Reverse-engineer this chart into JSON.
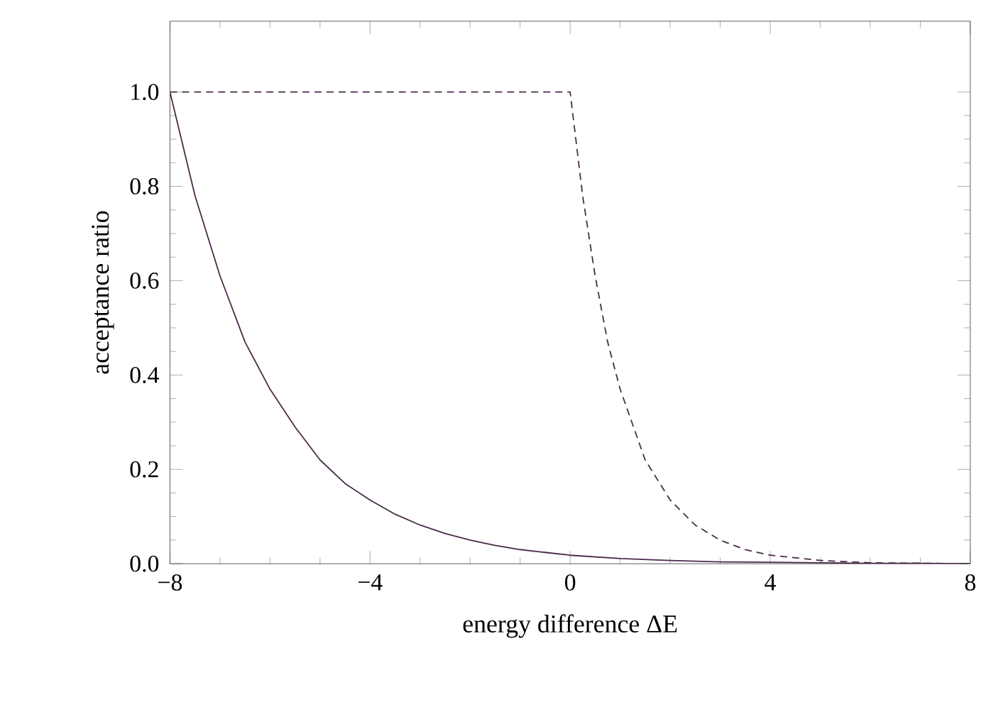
{
  "chart_data": {
    "type": "line",
    "xlabel": "energy difference ΔE",
    "ylabel": "acceptance ratio",
    "xlim": [
      -8,
      8
    ],
    "ylim": [
      0,
      1.15
    ],
    "xticks": [
      {
        "value": -8,
        "label": "−8"
      },
      {
        "value": -4,
        "label": "−4"
      },
      0,
      4,
      8
    ],
    "yticks": [
      {
        "value": 0,
        "label": "0.0"
      },
      {
        "value": 0.2,
        "label": "0.2"
      },
      {
        "value": 0.4,
        "label": "0.4"
      },
      {
        "value": 0.6,
        "label": "0.6"
      },
      {
        "value": 0.8,
        "label": "0.8"
      },
      {
        "value": 1,
        "label": "1.0"
      }
    ],
    "series": [
      {
        "color": "#4a2a4a",
        "line_style": "solid",
        "x": [
          -8,
          -7.5,
          -7,
          -6.5,
          -6,
          -5.5,
          -5,
          -4.5,
          -4,
          -3.5,
          -3,
          -2.5,
          -2,
          -1.5,
          -1,
          -0.5,
          0,
          1,
          2,
          3,
          4,
          5,
          6,
          7,
          8
        ],
        "values": [
          1.0,
          0.78,
          0.61,
          0.47,
          0.37,
          0.29,
          0.22,
          0.17,
          0.135,
          0.105,
          0.082,
          0.064,
          0.05,
          0.039,
          0.03,
          0.024,
          0.018,
          0.011,
          0.007,
          0.004,
          0.003,
          0.002,
          0.001,
          0.001,
          0.0
        ]
      },
      {
        "color": "#4a2a4a",
        "line_style": "dashed",
        "x": [
          -8,
          0,
          0.25,
          0.5,
          0.75,
          1,
          1.5,
          2,
          2.5,
          3,
          3.5,
          4,
          5,
          6,
          7,
          8
        ],
        "values": [
          1.0,
          1.0,
          0.78,
          0.61,
          0.47,
          0.37,
          0.22,
          0.135,
          0.082,
          0.05,
          0.03,
          0.018,
          0.007,
          0.002,
          0.001,
          0.0
        ]
      }
    ]
  }
}
